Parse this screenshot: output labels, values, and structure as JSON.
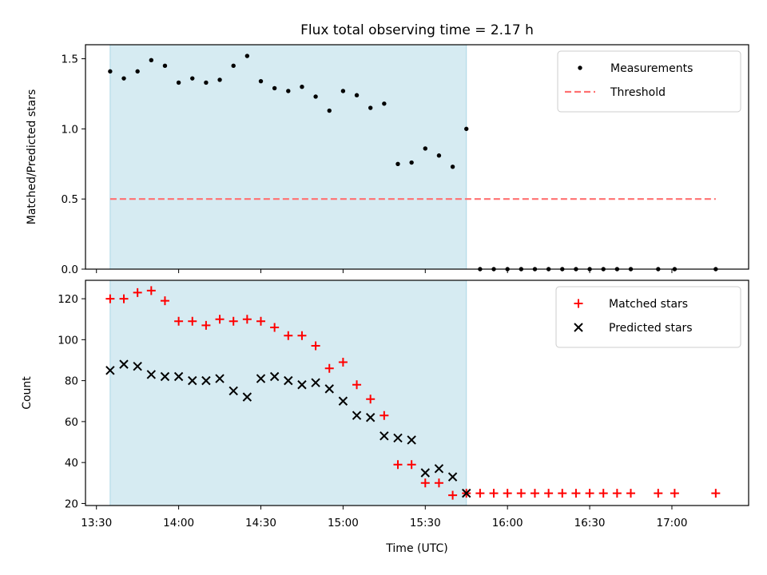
{
  "figure": {
    "title": "Flux total observing time = 2.17 h",
    "xlabel": "Time (UTC)",
    "xticks": [
      "13:30",
      "14:00",
      "14:30",
      "15:00",
      "15:30",
      "16:00",
      "16:30",
      "17:00"
    ]
  },
  "chart_data": [
    {
      "type": "scatter",
      "title": "Flux total observing time = 2.17 h",
      "ylabel": "Matched/Predicted stars",
      "xlim": [
        "13:26",
        "17:28"
      ],
      "ylim": [
        0,
        1.6
      ],
      "yticks": [
        "0.0",
        "0.5",
        "1.0",
        "1.5"
      ],
      "x_tick_values": [
        "13:30",
        "14:00",
        "14:30",
        "15:00",
        "15:30",
        "16:00",
        "16:30",
        "17:00"
      ],
      "shaded_interval": {
        "start": "13:35",
        "end": "15:45",
        "color": "#add8e6"
      },
      "legend_position": "top-right",
      "series": [
        {
          "name": "Measurements",
          "kind": "points",
          "color": "#000000",
          "x": [
            "13:35",
            "13:40",
            "13:45",
            "13:50",
            "13:55",
            "14:00",
            "14:05",
            "14:10",
            "14:15",
            "14:20",
            "14:25",
            "14:30",
            "14:35",
            "14:40",
            "14:45",
            "14:50",
            "14:55",
            "15:00",
            "15:05",
            "15:10",
            "15:15",
            "15:20",
            "15:25",
            "15:30",
            "15:35",
            "15:40",
            "15:45",
            "15:50",
            "15:55",
            "16:00",
            "16:05",
            "16:10",
            "16:15",
            "16:20",
            "16:25",
            "16:30",
            "16:35",
            "16:40",
            "16:45",
            "16:55",
            "17:01",
            "17:16"
          ],
          "y": [
            1.41,
            1.36,
            1.41,
            1.49,
            1.45,
            1.33,
            1.36,
            1.33,
            1.35,
            1.45,
            1.52,
            1.34,
            1.29,
            1.27,
            1.3,
            1.23,
            1.13,
            1.27,
            1.24,
            1.15,
            1.18,
            0.75,
            0.76,
            0.86,
            0.81,
            0.73,
            1.0,
            0,
            0,
            0,
            0,
            0,
            0,
            0,
            0,
            0,
            0,
            0,
            0,
            0,
            0,
            0
          ]
        },
        {
          "name": "Threshold",
          "kind": "dashed-line",
          "color": "#ff7070",
          "x": [
            "13:35",
            "17:16"
          ],
          "y": [
            0.5,
            0.5
          ]
        }
      ]
    },
    {
      "type": "scatter",
      "ylabel": "Count",
      "xlabel": "Time (UTC)",
      "xlim": [
        "13:26",
        "17:28"
      ],
      "ylim": [
        19,
        129
      ],
      "yticks": [
        "20",
        "40",
        "60",
        "80",
        "100",
        "120"
      ],
      "x_tick_values": [
        "13:30",
        "14:00",
        "14:30",
        "15:00",
        "15:30",
        "16:00",
        "16:30",
        "17:00"
      ],
      "shaded_interval": {
        "start": "13:35",
        "end": "15:45",
        "color": "#add8e6"
      },
      "legend_position": "top-right",
      "series": [
        {
          "name": "Matched stars",
          "marker": "plus",
          "color": "#ff0000",
          "x": [
            "13:35",
            "13:40",
            "13:45",
            "13:50",
            "13:55",
            "14:00",
            "14:05",
            "14:10",
            "14:15",
            "14:20",
            "14:25",
            "14:30",
            "14:35",
            "14:40",
            "14:45",
            "14:50",
            "14:55",
            "15:00",
            "15:05",
            "15:10",
            "15:15",
            "15:20",
            "15:25",
            "15:30",
            "15:35",
            "15:40",
            "15:45",
            "15:50",
            "15:55",
            "16:00",
            "16:05",
            "16:10",
            "16:15",
            "16:20",
            "16:25",
            "16:30",
            "16:35",
            "16:40",
            "16:45",
            "16:55",
            "17:01",
            "17:16"
          ],
          "y": [
            120,
            120,
            123,
            124,
            119,
            109,
            109,
            107,
            110,
            109,
            110,
            109,
            106,
            102,
            102,
            97,
            86,
            89,
            78,
            71,
            63,
            39,
            39,
            30,
            30,
            24,
            25,
            25,
            25,
            25,
            25,
            25,
            25,
            25,
            25,
            25,
            25,
            25,
            25,
            25,
            25,
            25
          ]
        },
        {
          "name": "Predicted stars",
          "marker": "x",
          "color": "#000000",
          "x": [
            "13:35",
            "13:40",
            "13:45",
            "13:50",
            "13:55",
            "14:00",
            "14:05",
            "14:10",
            "14:15",
            "14:20",
            "14:25",
            "14:30",
            "14:35",
            "14:40",
            "14:45",
            "14:50",
            "14:55",
            "15:00",
            "15:05",
            "15:10",
            "15:15",
            "15:20",
            "15:25",
            "15:30",
            "15:35",
            "15:40",
            "15:45"
          ],
          "y": [
            85,
            88,
            87,
            83,
            82,
            82,
            80,
            80,
            81,
            75,
            72,
            81,
            82,
            80,
            78,
            79,
            76,
            70,
            63,
            62,
            53,
            52,
            51,
            35,
            37,
            33,
            25
          ]
        }
      ]
    }
  ]
}
